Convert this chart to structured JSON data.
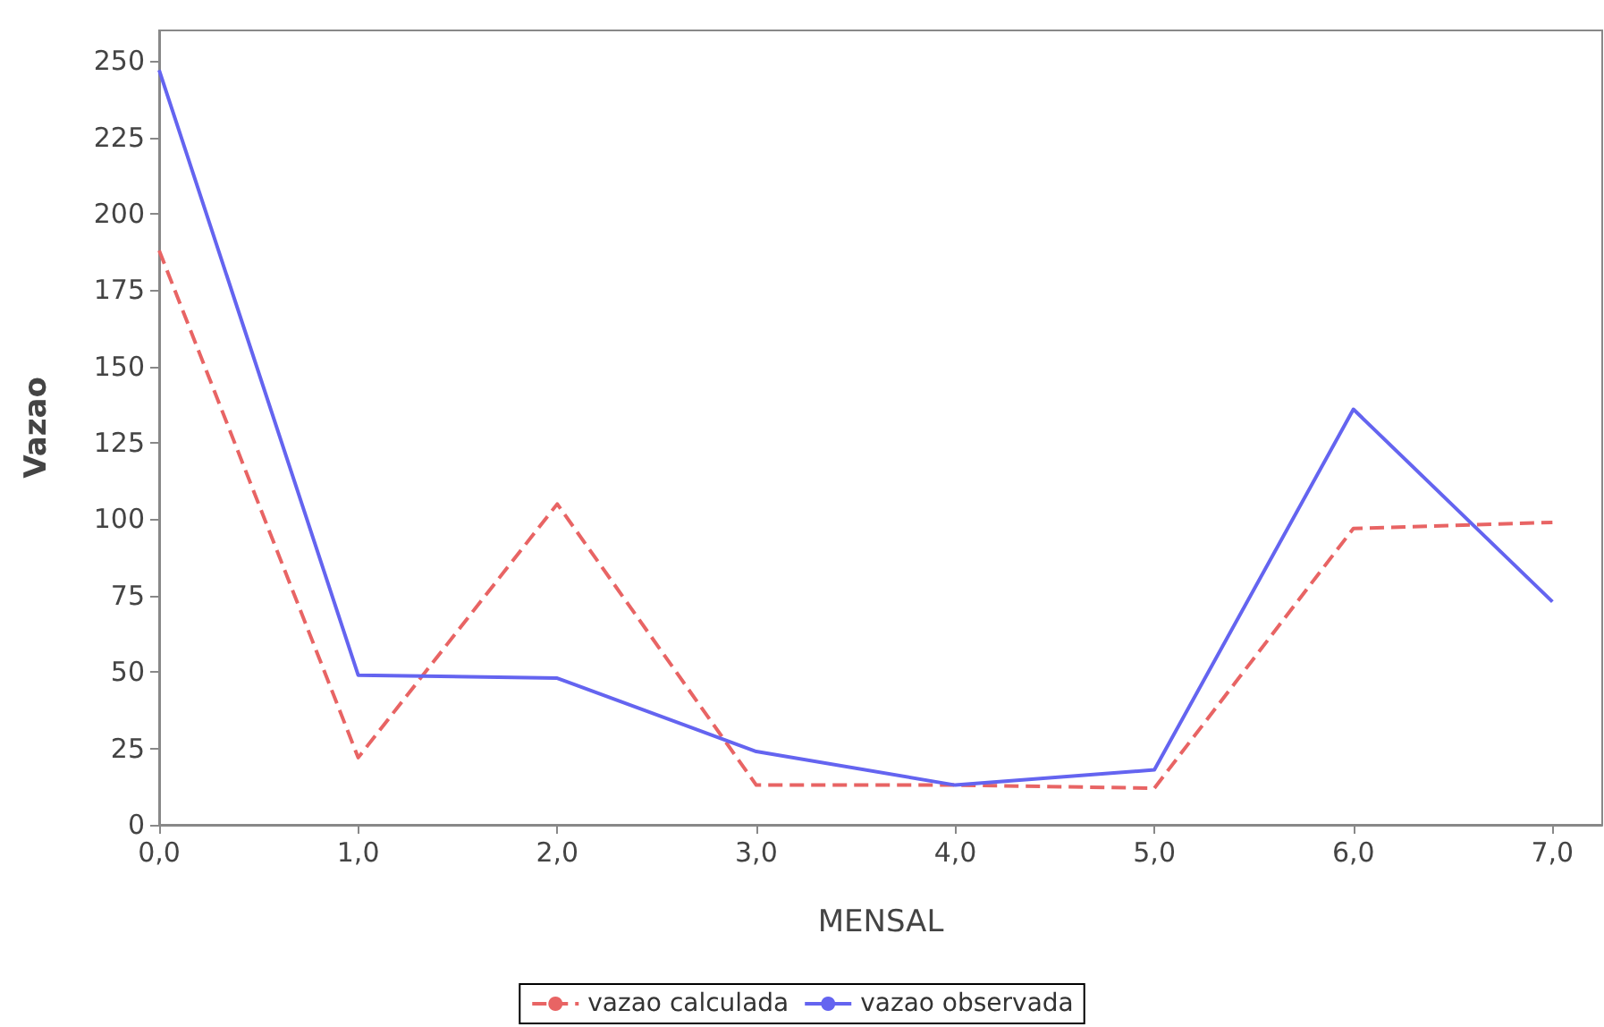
{
  "chart_data": {
    "type": "line",
    "xlabel": "MENSAL",
    "ylabel": "Vazao",
    "x": [
      0,
      1,
      2,
      3,
      4,
      5,
      6,
      7
    ],
    "series": [
      {
        "name": "vazao calculada",
        "color": "#e86464",
        "line_style": "dashed",
        "values": [
          188,
          22,
          105,
          13,
          13,
          12,
          97,
          99
        ]
      },
      {
        "name": "vazao observada",
        "color": "#6464f0",
        "line_style": "solid",
        "values": [
          247,
          49,
          48,
          24,
          13,
          18,
          136,
          73
        ]
      }
    ],
    "xlim": [
      0,
      7.25
    ],
    "xticks": [
      {
        "value": 0,
        "label": "0,0"
      },
      {
        "value": 1,
        "label": "1,0"
      },
      {
        "value": 2,
        "label": "2,0"
      },
      {
        "value": 3,
        "label": "3,0"
      },
      {
        "value": 4,
        "label": "4,0"
      },
      {
        "value": 5,
        "label": "5,0"
      },
      {
        "value": 6,
        "label": "6,0"
      },
      {
        "value": 7,
        "label": "7,0"
      }
    ],
    "ylim": [
      0,
      260
    ],
    "yticks": [
      0,
      25,
      50,
      75,
      100,
      125,
      150,
      175,
      200,
      225,
      250
    ],
    "grid": false,
    "legend": "bottom",
    "marker": "none"
  }
}
